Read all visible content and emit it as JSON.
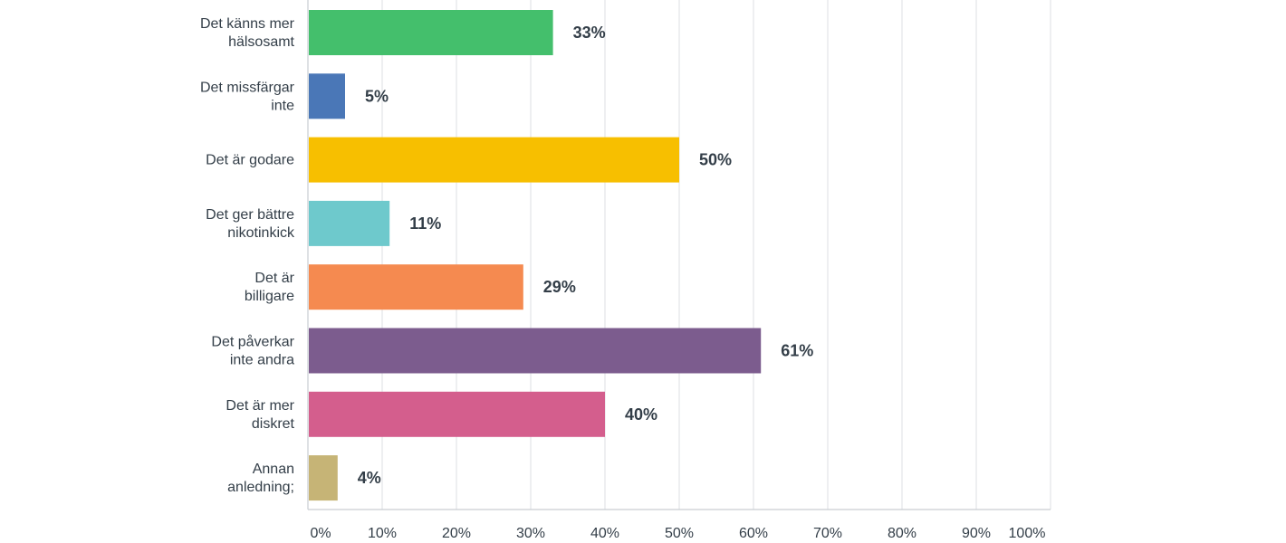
{
  "chart_data": {
    "type": "bar",
    "orientation": "horizontal",
    "categories": [
      [
        "Det känns mer",
        "hälsosamt"
      ],
      [
        "Det missfärgar",
        "inte"
      ],
      [
        "Det är godare"
      ],
      [
        "Det ger bättre",
        "nikotinkick"
      ],
      [
        "Det är",
        "billigare"
      ],
      [
        "Det påverkar",
        "inte andra"
      ],
      [
        "Det är mer",
        "diskret"
      ],
      [
        "Annan",
        "anledning;"
      ]
    ],
    "values": [
      33,
      5,
      50,
      11,
      29,
      61,
      40,
      4
    ],
    "value_labels": [
      "33%",
      "5%",
      "50%",
      "11%",
      "29%",
      "61%",
      "40%",
      "4%"
    ],
    "colors": [
      "#44bf6c",
      "#4a77b7",
      "#f7bf00",
      "#6ec9cc",
      "#f58a50",
      "#7c5c8e",
      "#d45e8d",
      "#c6b476"
    ],
    "x_ticks": [
      "0%",
      "10%",
      "20%",
      "30%",
      "40%",
      "50%",
      "60%",
      "70%",
      "80%",
      "90%",
      "100%"
    ],
    "xlim": [
      0,
      100
    ],
    "grid": true,
    "legend": "none"
  }
}
